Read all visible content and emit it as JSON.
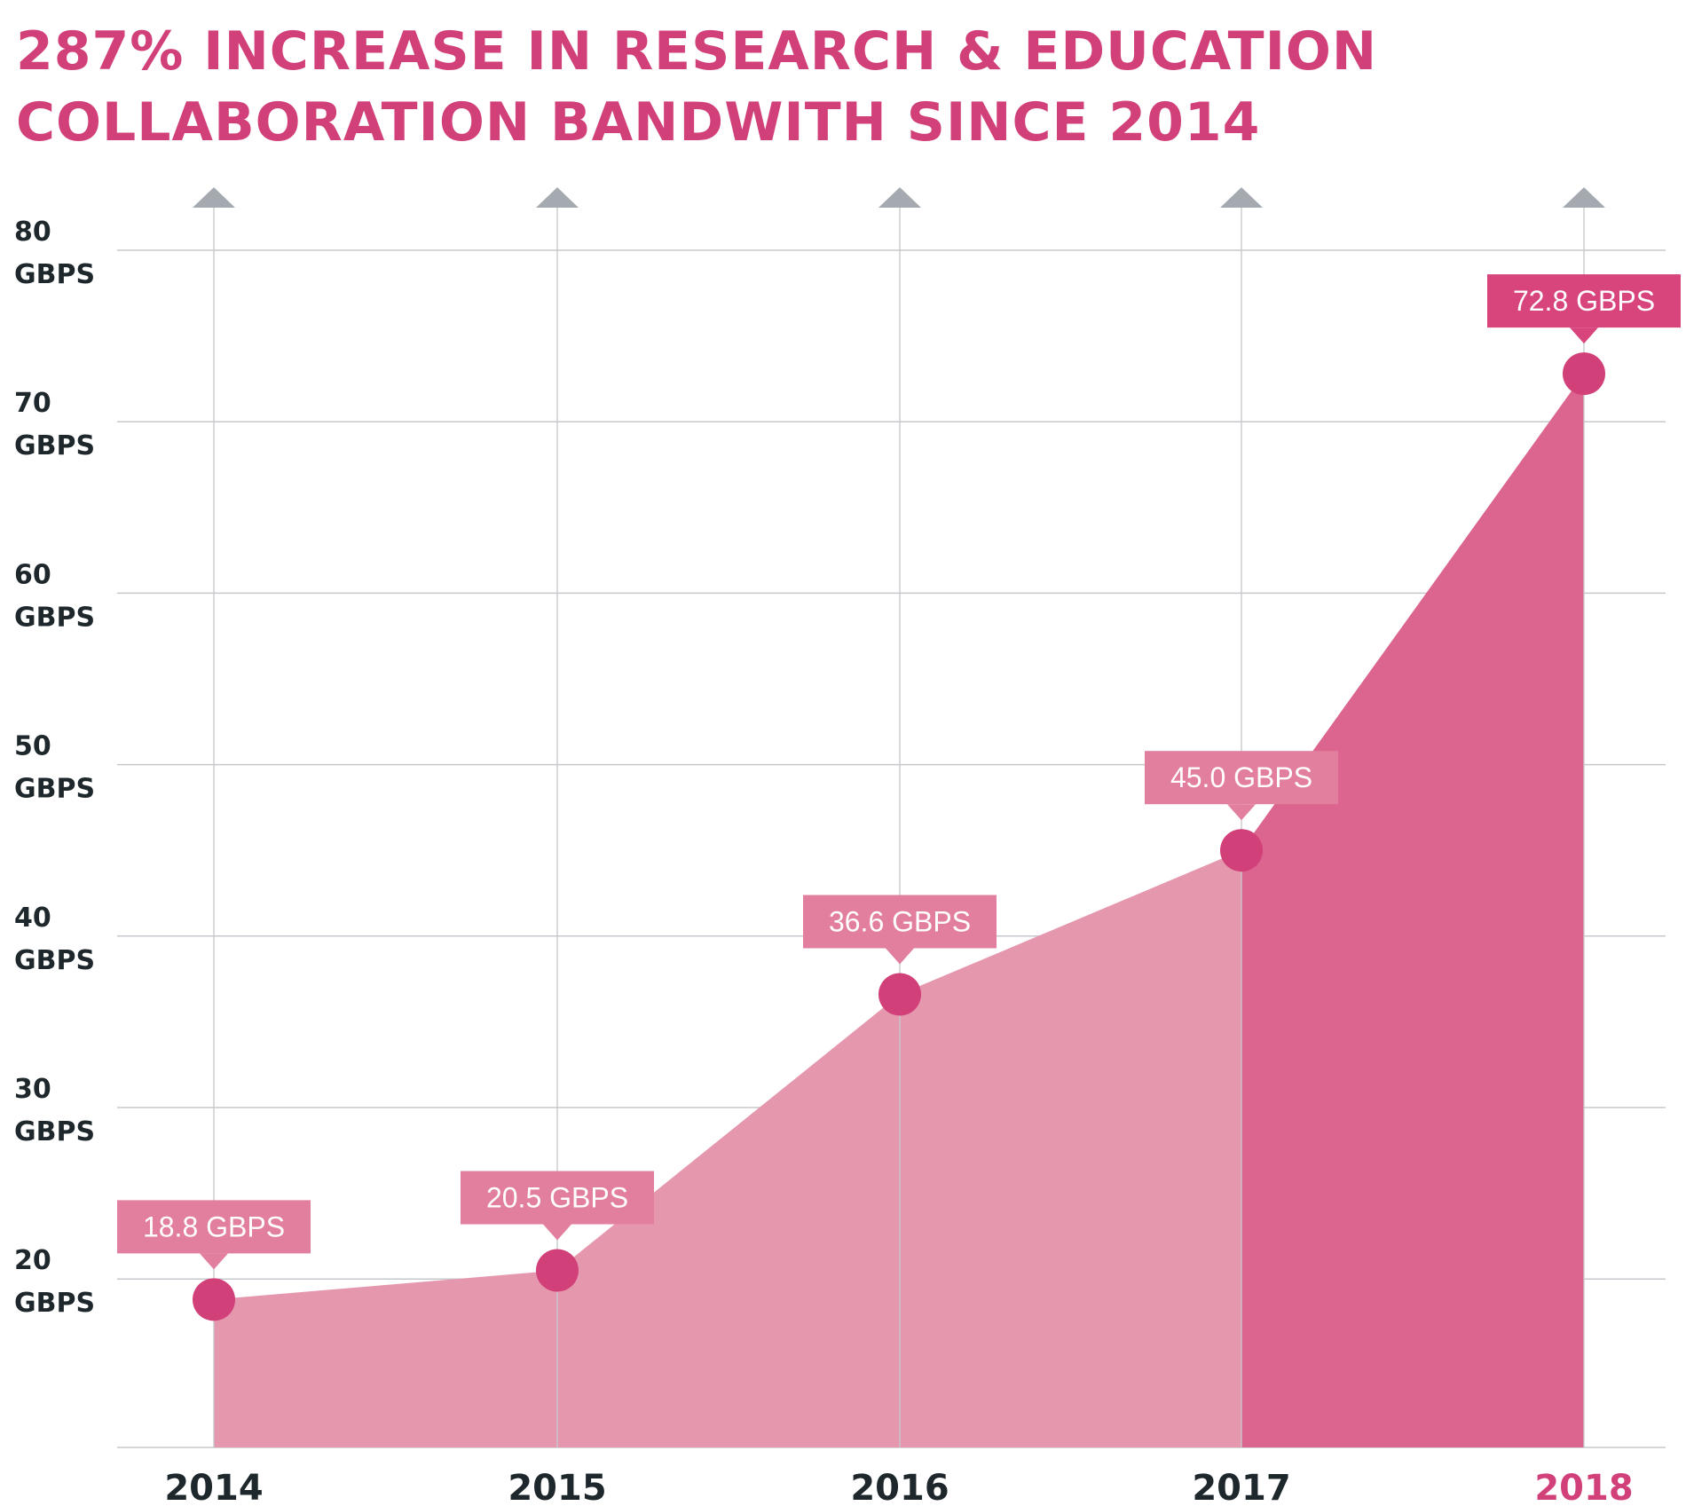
{
  "title": {
    "line1": "287% INCREASE IN RESEARCH & EDUCATION",
    "line2": "COLLABORATION BANDWITH SINCE 2014"
  },
  "colors": {
    "accent": "#d2407a",
    "area_light": "#e597ae",
    "area_dark": "#dc6590",
    "label_light": "#e27f9e",
    "label_dark": "#d8457d",
    "grid": "#c5c8cc",
    "arrow": "#a4aab0",
    "text_dark": "#1e272b"
  },
  "icons": {
    "axis_arrow": "up-arrow-icon"
  },
  "chart_data": {
    "type": "area",
    "title": "287% INCREASE IN RESEARCH & EDUCATION COLLABORATION BANDWITH SINCE 2014",
    "xlabel": "",
    "ylabel": "",
    "categories": [
      "2014",
      "2015",
      "2016",
      "2017",
      "2018"
    ],
    "highlight_category": "2018",
    "highlight_from": "2017",
    "series": [
      {
        "values": [
          18.8,
          20.5,
          36.6,
          45.0,
          72.8
        ],
        "labels": [
          "18.8 GBPS",
          "20.5 GBPS",
          "36.6 GBPS",
          "45.0 GBPS",
          "72.8 GBPS"
        ]
      }
    ],
    "yticks": [
      {
        "value": 20,
        "line1": "20",
        "line2": "GBPS"
      },
      {
        "value": 30,
        "line1": "30",
        "line2": "GBPS"
      },
      {
        "value": 40,
        "line1": "40",
        "line2": "GBPS"
      },
      {
        "value": 50,
        "line1": "50",
        "line2": "GBPS"
      },
      {
        "value": 60,
        "line1": "60",
        "line2": "GBPS"
      },
      {
        "value": 70,
        "line1": "70",
        "line2": "GBPS"
      },
      {
        "value": 80,
        "line1": "80",
        "line2": "GBPS"
      }
    ],
    "ylim": [
      12,
      80
    ],
    "grid": true,
    "legend": "none"
  }
}
